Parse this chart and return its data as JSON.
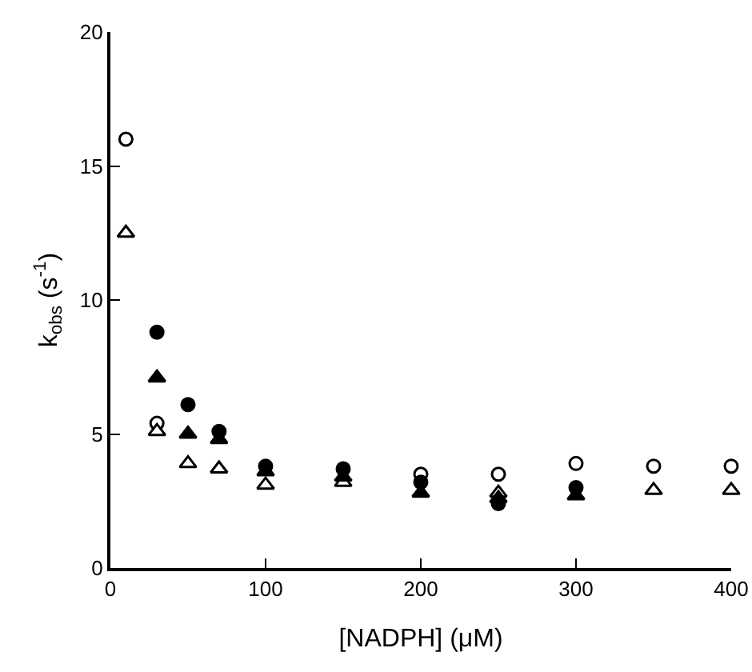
{
  "chart_data": {
    "type": "scatter",
    "xlabel": "[NADPH] (μM)",
    "ylabel": "k$_{obs}$ (s$^{-1}$)",
    "xlim": [
      0,
      400
    ],
    "ylim": [
      0,
      20
    ],
    "xticks": [
      0,
      100,
      200,
      300,
      400
    ],
    "yticks": [
      0,
      5,
      10,
      15,
      20
    ],
    "grid": false,
    "series": [
      {
        "color": "#ffffff",
        "marker": "circle",
        "x": [
          10,
          30,
          200,
          250,
          300,
          350,
          400
        ],
        "values": [
          16,
          5.4,
          3.5,
          3.5,
          3.9,
          3.8,
          3.8
        ]
      },
      {
        "color": "#ffffff",
        "marker": "triangle",
        "x": [
          10,
          30,
          50,
          70,
          100,
          150,
          200,
          250,
          300,
          350,
          400
        ],
        "values": [
          12.5,
          5.1,
          3.9,
          3.7,
          3.1,
          3.2,
          null,
          2.8,
          null,
          2.9,
          2.9
        ]
      },
      {
        "color": "#000000",
        "marker": "circle",
        "x": [
          30,
          50,
          70,
          100,
          150,
          200,
          250,
          300
        ],
        "values": [
          8.8,
          6.1,
          5.1,
          3.8,
          3.7,
          3.2,
          2.4,
          3.0
        ]
      },
      {
        "color": "#000000",
        "marker": "triangle",
        "x": [
          30,
          50,
          70,
          100,
          150,
          200,
          250,
          300
        ],
        "values": [
          7.1,
          5.0,
          4.8,
          3.6,
          3.4,
          2.8,
          2.6,
          2.7
        ]
      }
    ]
  }
}
